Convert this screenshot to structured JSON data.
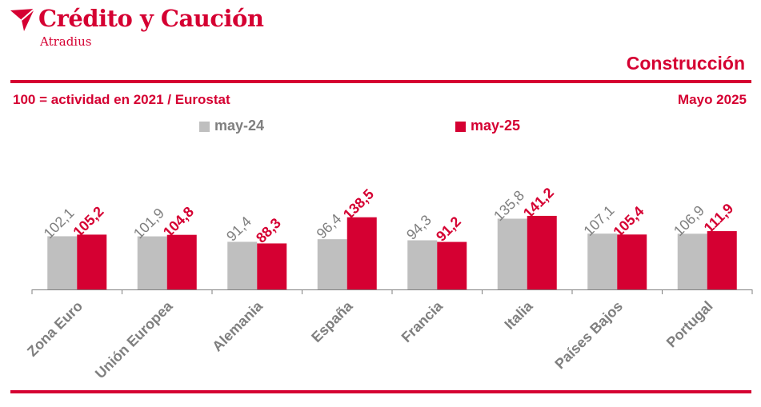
{
  "header": {
    "brand_name": "Crédito y Caución",
    "brand_sub": "Atradius",
    "section_title": "Construcción",
    "subtitle": "100 = actividad en 2021 / Eurostat",
    "date": "Mayo 2025"
  },
  "colors": {
    "brand": "#d50032",
    "series_2024": "#bfbfbf",
    "series_2025": "#d50032",
    "label_2024": "#7f7f7f"
  },
  "chart_data": {
    "type": "bar",
    "title": "Construcción",
    "subtitle": "100 = actividad en 2021 / Eurostat",
    "categories": [
      "Zona Euro",
      "Unión Europea",
      "Alemania",
      "España",
      "Francia",
      "Italia",
      "Países Bajos",
      "Portugal"
    ],
    "series": [
      {
        "name": "may-24",
        "values": [
          102.1,
          101.9,
          91.4,
          96.4,
          94.3,
          135.8,
          107.1,
          106.9
        ],
        "labels": [
          "102,1",
          "101,9",
          "91,4",
          "96,4",
          "94,3",
          "135,8",
          "107,1",
          "106,9"
        ]
      },
      {
        "name": "may-25",
        "values": [
          105.2,
          104.8,
          88.3,
          138.5,
          91.2,
          141.2,
          105.4,
          111.9
        ],
        "labels": [
          "105,2",
          "104,8",
          "88,3",
          "138,5",
          "91,2",
          "141,2",
          "105,4",
          "111,9"
        ]
      }
    ],
    "ylim": [
      0,
      200
    ],
    "grid": false,
    "data_labels": true,
    "legend_position": "top-center"
  }
}
